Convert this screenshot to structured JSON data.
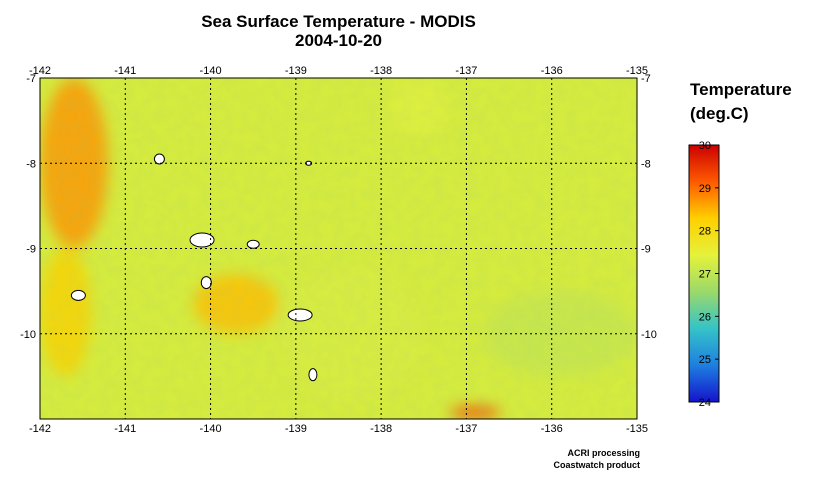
{
  "title": "Sea Surface Temperature - MODIS",
  "subtitle": "2004-10-20",
  "legend": {
    "title_line1": "Temperature",
    "title_line2": "(deg.C)",
    "min": 24,
    "max": 30,
    "ticks": [
      "30",
      "29",
      "28",
      "27",
      "26",
      "25",
      "24"
    ],
    "colors": [
      "#cc0000",
      "#ff5a00",
      "#ffd000",
      "#e5f23a",
      "#9ad96a",
      "#35c3c8",
      "#1e7fe0",
      "#1414cc"
    ]
  },
  "credits": {
    "line1": "ACRI processing",
    "line2": "Coastwatch product"
  },
  "chart_data": {
    "type": "heatmap",
    "title": "Sea Surface Temperature - MODIS",
    "subtitle": "2004-10-20",
    "xlabel": "",
    "ylabel": "",
    "xlim": [
      -142,
      -135
    ],
    "ylim": [
      -11,
      -7
    ],
    "x_ticks": [
      "-142",
      "-141",
      "-140",
      "-139",
      "-138",
      "-137",
      "-136",
      "-135"
    ],
    "y_ticks": [
      "-7",
      "-8",
      "-9",
      "-10"
    ],
    "grid": true,
    "colorbar_label": "Temperature (deg.C)",
    "colorbar_range": [
      24,
      30
    ],
    "regions": [
      {
        "lon": [
          -142,
          -141.2
        ],
        "lat": [
          -9,
          -7
        ],
        "sst": 28.7
      },
      {
        "lon": [
          -142,
          -141.4
        ],
        "lat": [
          -10.5,
          -9
        ],
        "sst": 28.2
      },
      {
        "lon": [
          -140.2,
          -139.2
        ],
        "lat": [
          -10,
          -9.3
        ],
        "sst": 28.4
      },
      {
        "lon": [
          -139.2,
          -137.5
        ],
        "lat": [
          -10.8,
          -9.2
        ],
        "sst": 27.3
      },
      {
        "lon": [
          -136.8,
          -135
        ],
        "lat": [
          -10.5,
          -9.5
        ],
        "sst": 27.1
      },
      {
        "lon": [
          -137.9,
          -137.2
        ],
        "lat": [
          -7.7,
          -7
        ],
        "sst": 27.4
      },
      {
        "lon": [
          -137.2,
          -136.6
        ],
        "lat": [
          -11,
          -10.85
        ],
        "sst": 29.3
      }
    ],
    "islands": [
      {
        "lon": -140.1,
        "lat": -8.9
      },
      {
        "lon": -139.5,
        "lat": -8.95
      },
      {
        "lon": -140.6,
        "lat": -7.95
      },
      {
        "lon": -138.85,
        "lat": -8.0
      },
      {
        "lon": -140.05,
        "lat": -9.4
      },
      {
        "lon": -138.95,
        "lat": -9.78
      },
      {
        "lon": -138.8,
        "lat": -10.48
      },
      {
        "lon": -141.55,
        "lat": -9.55
      }
    ]
  }
}
